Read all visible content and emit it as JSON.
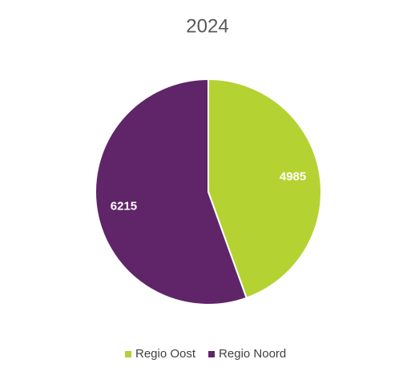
{
  "chart_data": {
    "type": "pie",
    "title": "2024",
    "categories": [
      "Regio Oost",
      "Regio Noord"
    ],
    "values": [
      4985,
      6215
    ],
    "colors": [
      "#b5d233",
      "#5f2568"
    ],
    "legend": "bottom"
  }
}
